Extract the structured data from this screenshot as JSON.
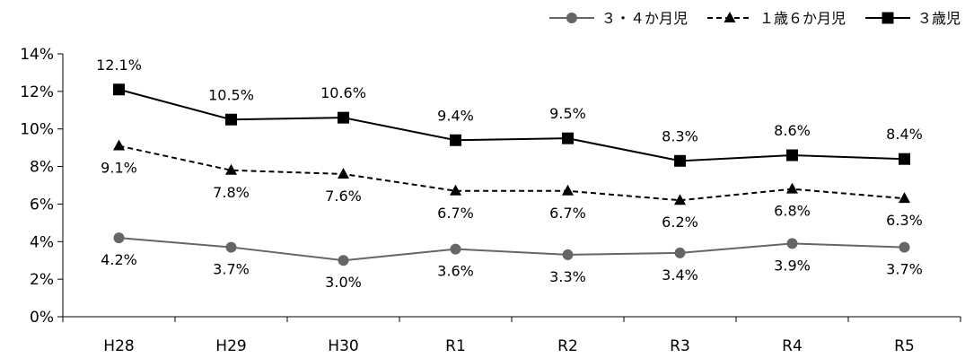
{
  "chart_data": {
    "type": "line",
    "categories": [
      "H28",
      "H29",
      "H30",
      "R1",
      "R2",
      "R3",
      "R4",
      "R5"
    ],
    "ylim": [
      0,
      14
    ],
    "yticks": [
      "0%",
      "2%",
      "4%",
      "6%",
      "8%",
      "10%",
      "12%",
      "14%"
    ],
    "grid": false,
    "legend_position": "top-right",
    "series": [
      {
        "name": "３・４か月児",
        "values": [
          4.2,
          3.7,
          3.0,
          3.6,
          3.3,
          3.4,
          3.9,
          3.7
        ],
        "labels": [
          "4.2%",
          "3.7%",
          "3.0%",
          "3.6%",
          "3.3%",
          "3.4%",
          "3.9%",
          "3.7%"
        ],
        "color": "#666666",
        "marker": "circle",
        "dash": "solid",
        "label_position": "below"
      },
      {
        "name": "１歳６か月児",
        "values": [
          9.1,
          7.8,
          7.6,
          6.7,
          6.7,
          6.2,
          6.8,
          6.3
        ],
        "labels": [
          "9.1%",
          "7.8%",
          "7.6%",
          "6.7%",
          "6.7%",
          "6.2%",
          "6.8%",
          "6.3%"
        ],
        "color": "#000000",
        "marker": "triangle",
        "dash": "dashed",
        "label_position": "below"
      },
      {
        "name": "３歳児",
        "values": [
          12.1,
          10.5,
          10.6,
          9.4,
          9.5,
          8.3,
          8.6,
          8.4
        ],
        "labels": [
          "12.1%",
          "10.5%",
          "10.6%",
          "9.4%",
          "9.5%",
          "8.3%",
          "8.6%",
          "8.4%"
        ],
        "color": "#000000",
        "marker": "square",
        "dash": "solid",
        "label_position": "above"
      }
    ]
  }
}
